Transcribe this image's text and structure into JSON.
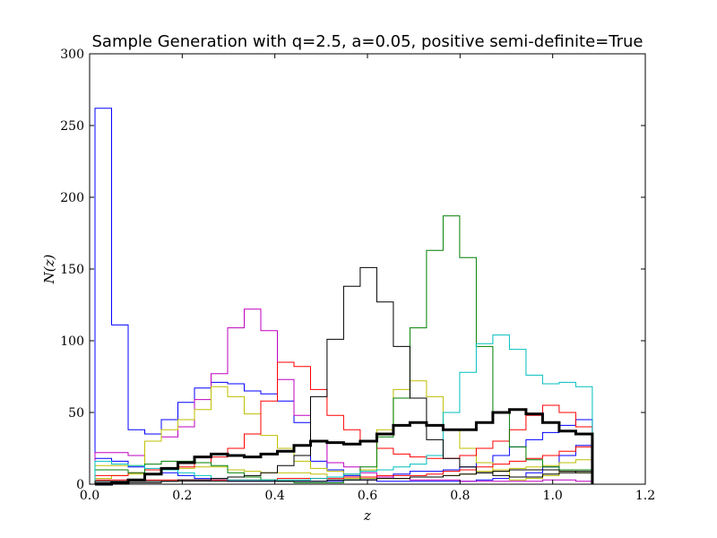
{
  "chart_data": {
    "type": "line",
    "title": "Sample Generation with q=2.5, a=0.05, positive semi-definite=True",
    "xlabel": "z",
    "ylabel": "N(z)",
    "xlim": [
      0.0,
      1.2
    ],
    "ylim": [
      0,
      300
    ],
    "xticks": [
      "0.0",
      "0.2",
      "0.4",
      "0.6",
      "0.8",
      "1.0",
      "1.2"
    ],
    "yticks": [
      "0",
      "50",
      "100",
      "150",
      "200",
      "250",
      "300"
    ],
    "grid": false,
    "legend": "none",
    "bin_edges": [
      0.0116,
      0.0474,
      0.0832,
      0.119,
      0.1548,
      0.1906,
      0.2264,
      0.2622,
      0.298,
      0.3338,
      0.3696,
      0.4054,
      0.4412,
      0.477,
      0.5128,
      0.5486,
      0.5844,
      0.6202,
      0.656,
      0.6918,
      0.7276,
      0.7634,
      0.7992,
      0.835,
      0.8708,
      0.9066,
      0.9424,
      0.9782,
      1.014,
      1.0498,
      1.0856
    ],
    "series": [
      {
        "color": "#0000ff",
        "width": 1,
        "values": [
          262,
          111,
          38,
          35,
          45,
          57,
          67,
          71,
          70,
          65,
          63,
          58,
          43,
          16,
          10,
          6,
          3,
          2,
          2,
          2,
          2,
          2,
          2,
          3,
          4,
          5,
          8,
          12,
          20,
          27
        ]
      },
      {
        "color": "#0000ff",
        "width": 1,
        "values": [
          18,
          16,
          12,
          10,
          8,
          6,
          4,
          3,
          2,
          2,
          2,
          2,
          2,
          2,
          2,
          3,
          4,
          5,
          7,
          9,
          9,
          10,
          12,
          15,
          20,
          26,
          31,
          36,
          41,
          45
        ]
      },
      {
        "color": "#bf00bf",
        "width": 1,
        "values": [
          22,
          22,
          20,
          30,
          33,
          40,
          59,
          77,
          109,
          122,
          107,
          73,
          48,
          30,
          15,
          12,
          8,
          5,
          4,
          3,
          3,
          3,
          2,
          2,
          2,
          2,
          2,
          3,
          3,
          2
        ]
      },
      {
        "color": "#bfbf00",
        "width": 1,
        "values": [
          13,
          13,
          13,
          30,
          38,
          45,
          52,
          68,
          61,
          49,
          34,
          25,
          16,
          11,
          9,
          7,
          10,
          38,
          66,
          72,
          61,
          38,
          25,
          15,
          9,
          3,
          4,
          6,
          9,
          8
        ]
      },
      {
        "color": "#bfbf00",
        "width": 1,
        "values": [
          4,
          6,
          7,
          10,
          11,
          11,
          12,
          12,
          10,
          9,
          8,
          8,
          8,
          7,
          5,
          4,
          4,
          4,
          4,
          5,
          5,
          6,
          7,
          9,
          10,
          11,
          12,
          13,
          15,
          17
        ]
      },
      {
        "color": "#ff0000",
        "width": 1,
        "values": [
          6,
          6,
          8,
          10,
          10,
          12,
          15,
          19,
          25,
          35,
          58,
          85,
          82,
          66,
          48,
          38,
          30,
          25,
          21,
          19,
          18,
          18,
          20,
          25,
          30,
          38,
          48,
          55,
          50,
          40
        ]
      },
      {
        "color": "#ff0000",
        "width": 1,
        "values": [
          3,
          3,
          3,
          3,
          3,
          3,
          3,
          3,
          3,
          3,
          3,
          4,
          4,
          4,
          4,
          5,
          5,
          6,
          6,
          6,
          7,
          9,
          10,
          12,
          14,
          16,
          18,
          20,
          23,
          26
        ]
      },
      {
        "color": "#007f00",
        "width": 1,
        "values": [
          10,
          10,
          8,
          14,
          16,
          16,
          15,
          13,
          8,
          5,
          3,
          2,
          1,
          1,
          1,
          3,
          12,
          33,
          60,
          109,
          163,
          187,
          158,
          96,
          50,
          26,
          17,
          12,
          10,
          10
        ]
      },
      {
        "color": "#00bfbf",
        "width": 1,
        "values": [
          16,
          14,
          13,
          11,
          10,
          8,
          6,
          4,
          3,
          3,
          3,
          3,
          3,
          4,
          5,
          7,
          9,
          10,
          12,
          14,
          20,
          50,
          78,
          98,
          104,
          94,
          76,
          70,
          71,
          68
        ]
      },
      {
        "color": "#000000",
        "width": 1,
        "values": [
          1,
          1,
          1,
          1,
          2,
          3,
          3,
          4,
          5,
          6,
          8,
          13,
          20,
          61,
          101,
          138,
          151,
          127,
          96,
          60,
          31,
          18,
          12,
          8,
          6,
          5,
          5,
          7,
          8,
          9
        ]
      },
      {
        "color": "#000000",
        "width": 1,
        "values": [
          2,
          2,
          2,
          2,
          2,
          2,
          2,
          2,
          2,
          2,
          2,
          2,
          2,
          2,
          3,
          3,
          3,
          4,
          4,
          5,
          5,
          6,
          7,
          8,
          9,
          10,
          10,
          10,
          9,
          8
        ]
      },
      {
        "color": "#000000",
        "width": 3,
        "values": [
          0,
          1,
          3,
          7,
          11,
          15,
          19,
          21,
          20,
          19,
          21,
          23,
          27,
          30,
          29,
          28,
          30,
          35,
          41,
          43,
          41,
          38,
          38,
          43,
          50,
          52,
          49,
          43,
          37,
          35
        ]
      }
    ]
  }
}
